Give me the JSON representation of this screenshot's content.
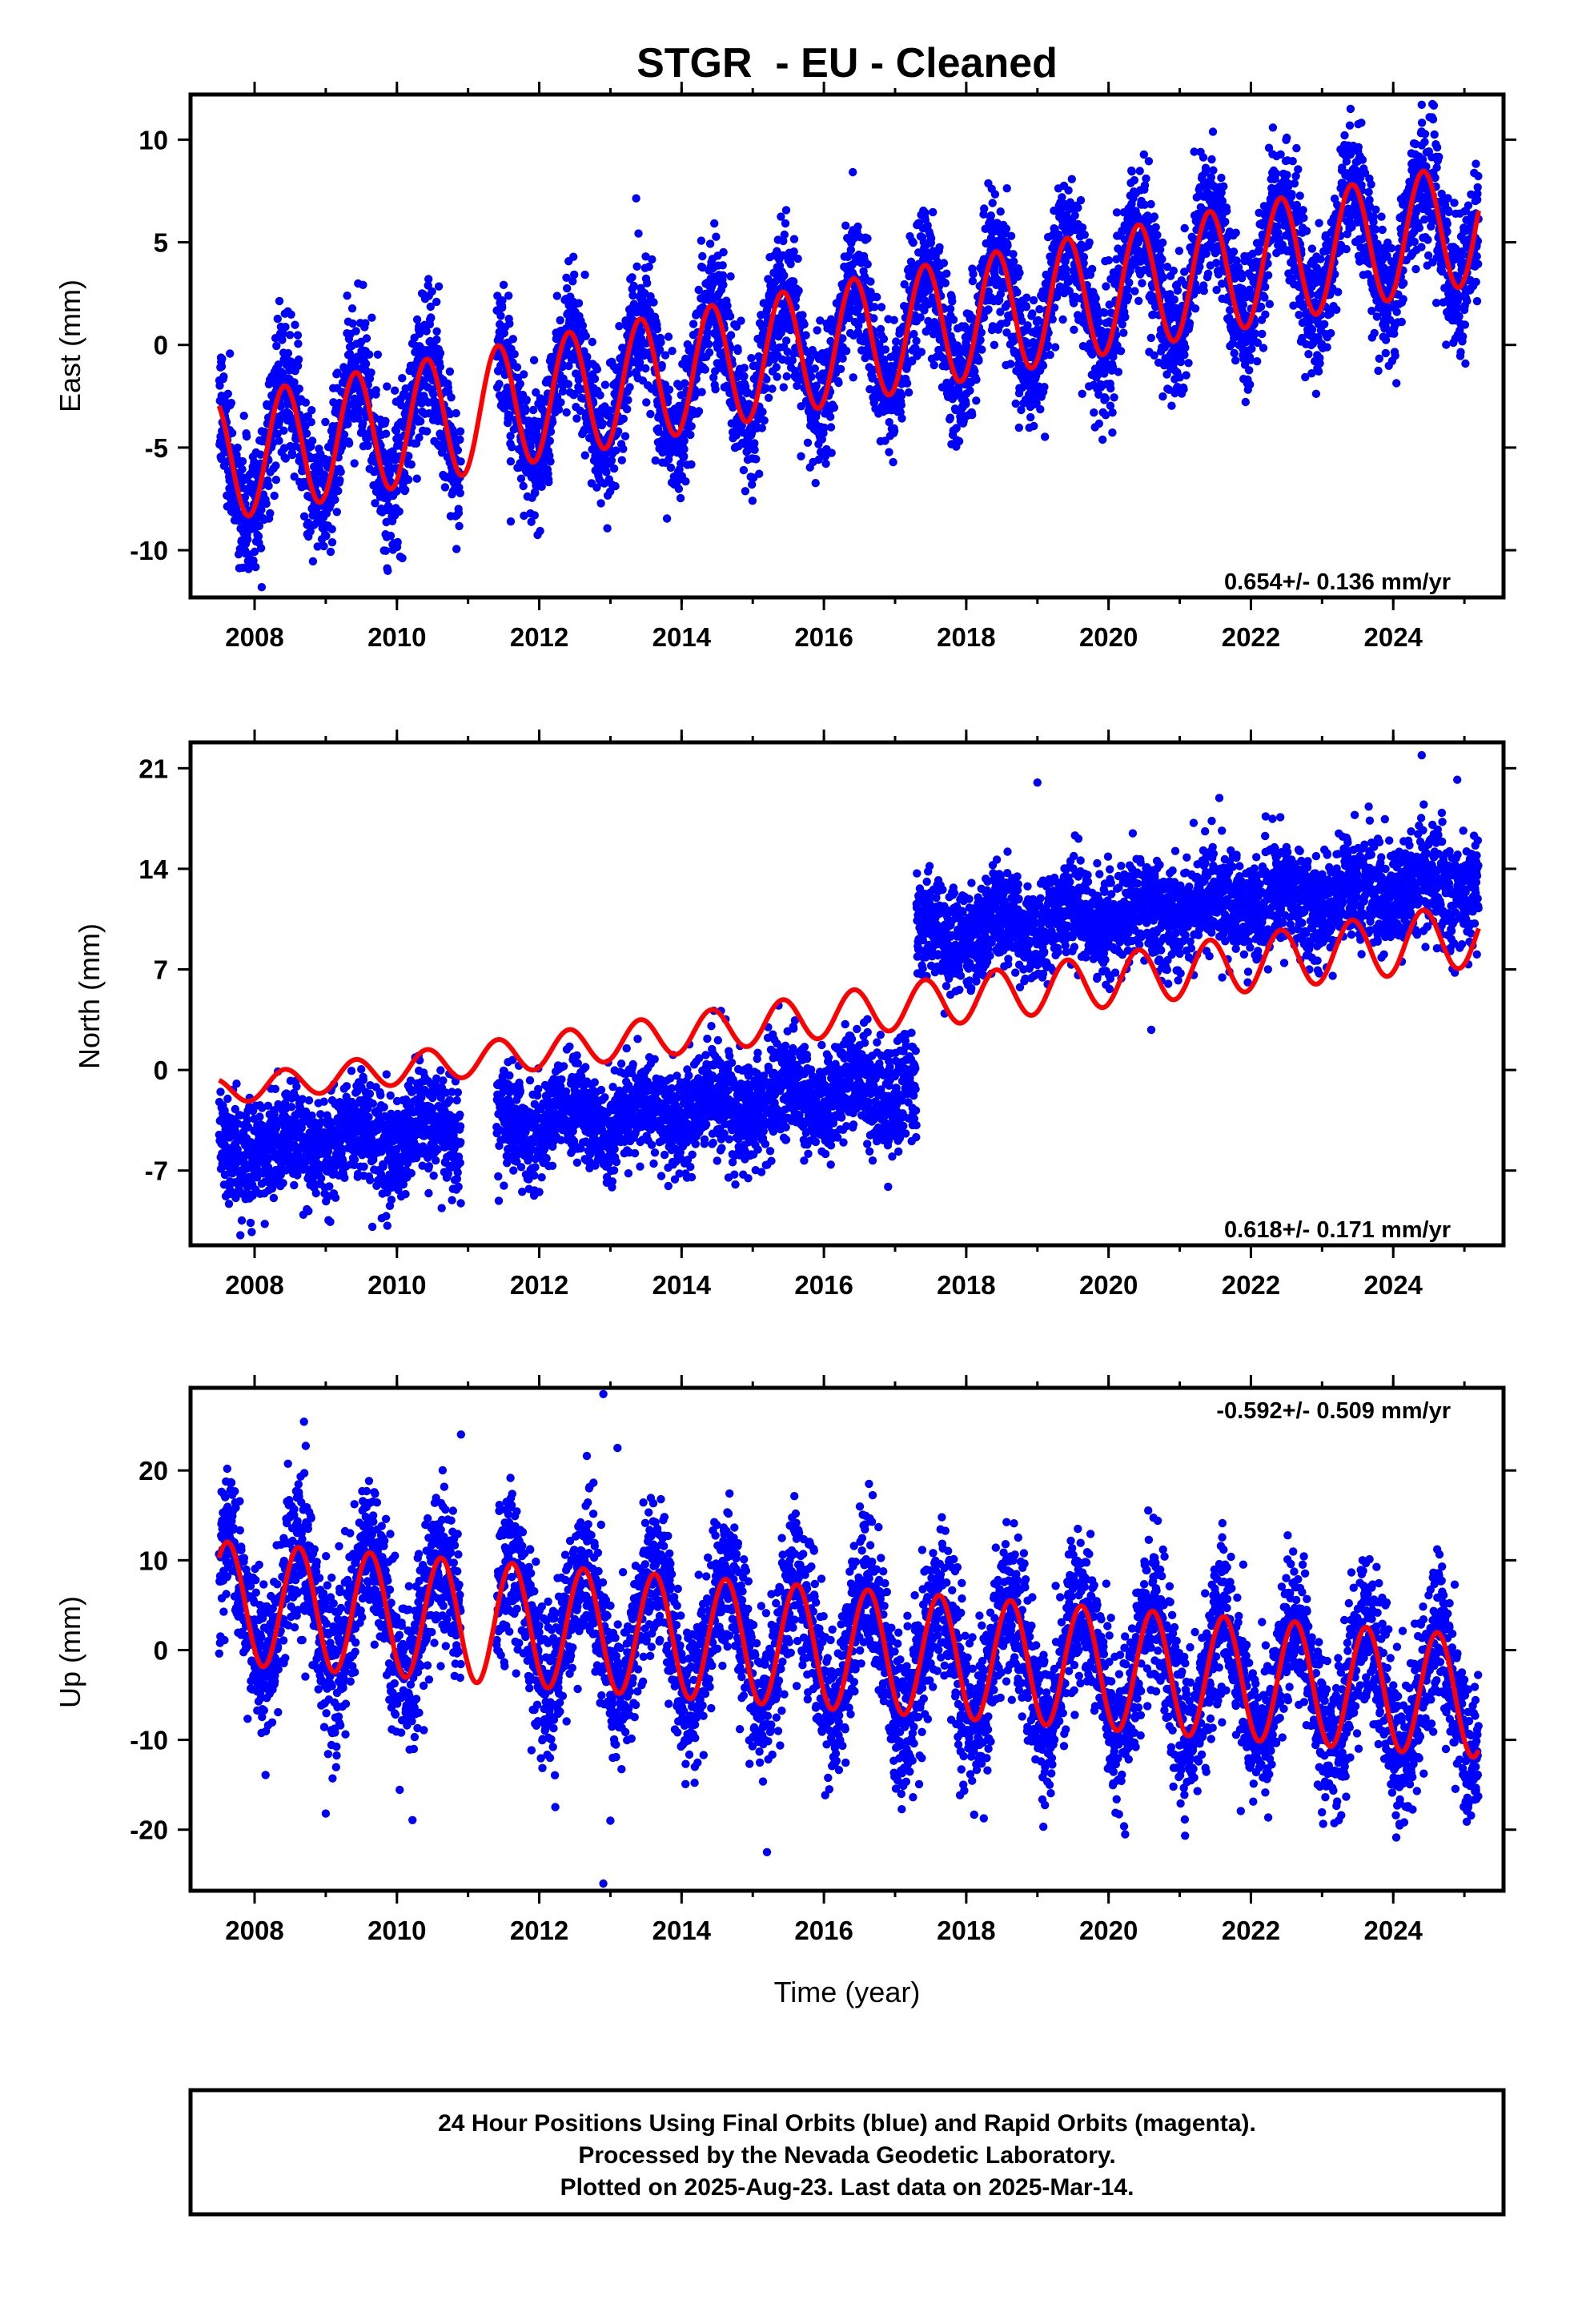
{
  "colors": {
    "points": "#0000ff",
    "fit": "#ff0000",
    "frame": "#000000",
    "background": "#ffffff"
  },
  "footer": {
    "line1": "24 Hour Positions Using Final Orbits (blue) and Rapid Orbits (magenta).",
    "line2": "Processed by the Nevada Geodetic Laboratory.",
    "line3": "Plotted on 2025-Aug-23. Last data on 2025-Mar-14."
  },
  "chart_data": [
    {
      "type": "scatter",
      "component": "east",
      "title": "STGR  - EU - Cleaned",
      "xlabel": "",
      "ylabel": "East (mm)",
      "xlim": [
        2007.1,
        2025.55
      ],
      "ylim": [
        -12.3,
        12.2
      ],
      "xticks": [
        2008,
        2010,
        2012,
        2014,
        2016,
        2018,
        2020,
        2022,
        2024
      ],
      "yticks": [
        -10,
        -5,
        0,
        5,
        10
      ],
      "rate_text": "0.654+/- 0.136 mm/yr",
      "rate_position": "bottom-right",
      "data_span": [
        2007.5,
        2025.2
      ],
      "data_gap": [
        2010.9,
        2011.4
      ],
      "fit": {
        "t0": 2007.5,
        "offset": -5.6,
        "slope": 0.654,
        "annual_amplitude": 3.0,
        "annual_peak": 0.42,
        "amplitude_growth": 0.0
      },
      "scatter_sigma": 1.6,
      "outliers": [
        [
          2008.1,
          -11.8
        ],
        [
          2011.6,
          -8.6
        ],
        [
          2024.4,
          11.7
        ],
        [
          2023.4,
          11.5
        ],
        [
          2009.3,
          2.4
        ]
      ]
    },
    {
      "type": "scatter",
      "component": "north",
      "title": "",
      "xlabel": "",
      "ylabel": "North (mm)",
      "xlim": [
        2007.1,
        2025.55
      ],
      "ylim": [
        -12.2,
        22.8
      ],
      "xticks": [
        2008,
        2010,
        2012,
        2014,
        2016,
        2018,
        2020,
        2022,
        2024
      ],
      "yticks": [
        -7,
        0,
        7,
        14,
        21
      ],
      "rate_text": "0.618+/- 0.171 mm/yr",
      "rate_position": "bottom-right",
      "data_span": [
        2007.5,
        2025.2
      ],
      "data_gap": [
        2010.9,
        2011.4
      ],
      "step": {
        "at": 2017.3,
        "before_offset": -5.6,
        "after_offset": 9.5,
        "point_slope": 0.45
      },
      "fit": {
        "t0": 2007.5,
        "offset": -1.5,
        "slope": 0.618,
        "annual_amplitude": 0.9,
        "annual_peak": 0.42,
        "amplitude_growth": 0.075
      },
      "scatter_sigma": 1.8,
      "outliers": [
        [
          2024.4,
          21.9
        ],
        [
          2019.0,
          20.0
        ],
        [
          2024.9,
          20.2
        ],
        [
          2007.8,
          -11.5
        ],
        [
          2020.6,
          2.8
        ]
      ]
    },
    {
      "type": "scatter",
      "component": "up",
      "title": "",
      "xlabel": "Time (year)",
      "ylabel": "Up (mm)",
      "xlim": [
        2007.1,
        2025.55
      ],
      "ylim": [
        -26.8,
        29.2
      ],
      "xticks": [
        2008,
        2010,
        2012,
        2014,
        2016,
        2018,
        2020,
        2022,
        2024
      ],
      "yticks": [
        -20,
        -10,
        0,
        10,
        20
      ],
      "rate_text": "-0.592+/- 0.509 mm/yr",
      "rate_position": "top-right",
      "data_span": [
        2007.5,
        2025.2
      ],
      "data_gap": [
        2010.9,
        2011.4
      ],
      "fit": {
        "t0": 2007.5,
        "offset": 5.3,
        "slope": -0.592,
        "annual_amplitude": 6.8,
        "annual_peak": 0.62,
        "amplitude_growth": 0.0
      },
      "scatter_sigma": 4.3,
      "outliers": [
        [
          2012.9,
          28.5
        ],
        [
          2012.9,
          -26.0
        ],
        [
          2013.1,
          22.5
        ],
        [
          2010.9,
          24.0
        ],
        [
          2013.0,
          -19.0
        ],
        [
          2009.0,
          -18.2
        ],
        [
          2015.2,
          -22.5
        ]
      ]
    }
  ]
}
